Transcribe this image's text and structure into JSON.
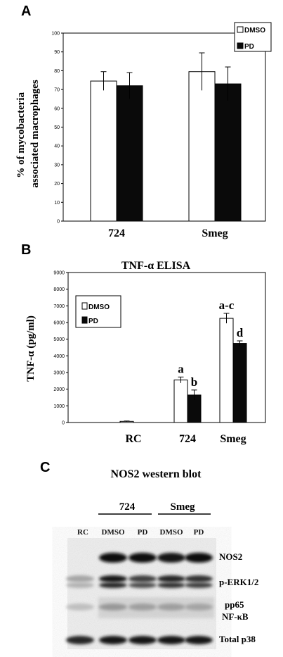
{
  "chart_data": [
    {
      "panel": "A",
      "type": "bar",
      "ylabel_lines": [
        "% of mycobacteria",
        "associated macrophages"
      ],
      "categories": [
        "724",
        "Smeg"
      ],
      "yticks": [
        0,
        10,
        20,
        30,
        40,
        50,
        60,
        70,
        80,
        90,
        100
      ],
      "ylim": [
        0,
        100
      ],
      "legend": {
        "placement": "top-right",
        "entries": [
          "DMSO",
          "PD"
        ]
      },
      "series": [
        {
          "name": "DMSO",
          "color": "#ffffff",
          "values": [
            74.5,
            79.5
          ],
          "errors": [
            5,
            10
          ]
        },
        {
          "name": "PD",
          "color": "#0a0a0a",
          "values": [
            72,
            73
          ],
          "errors": [
            7,
            9
          ]
        }
      ]
    },
    {
      "panel": "B",
      "type": "bar",
      "title": "TNF-α ELISA",
      "ylabel": "TNF-α (pg/ml)",
      "categories": [
        "RC",
        "724",
        "Smeg"
      ],
      "yticks": [
        0,
        1000,
        2000,
        3000,
        4000,
        5000,
        6000,
        7000,
        8000,
        9000
      ],
      "ylim": [
        0,
        9000
      ],
      "legend": {
        "placement": "top-left",
        "entries": [
          "DMSO",
          "PD"
        ]
      },
      "series": [
        {
          "name": "DMSO",
          "color": "#ffffff",
          "values": [
            70,
            2550,
            6250
          ],
          "errors": [
            20,
            180,
            300
          ],
          "letters": [
            "",
            "a",
            "a-c"
          ]
        },
        {
          "name": "PD",
          "color": "#0a0a0a",
          "values": [
            0,
            1650,
            4750
          ],
          "errors": [
            0,
            300,
            150
          ],
          "letters": [
            "",
            "b",
            "d"
          ]
        }
      ]
    }
  ],
  "panel_c": {
    "letter": "C",
    "title": "NOS2 western blot",
    "groups": [
      "724",
      "Smeg"
    ],
    "lanes": [
      "RC",
      "DMSO",
      "PD",
      "DMSO",
      "PD"
    ],
    "bands": [
      "NOS2",
      "p-ERK1/2",
      "pp65",
      "NF-κB",
      "Total p38"
    ]
  }
}
